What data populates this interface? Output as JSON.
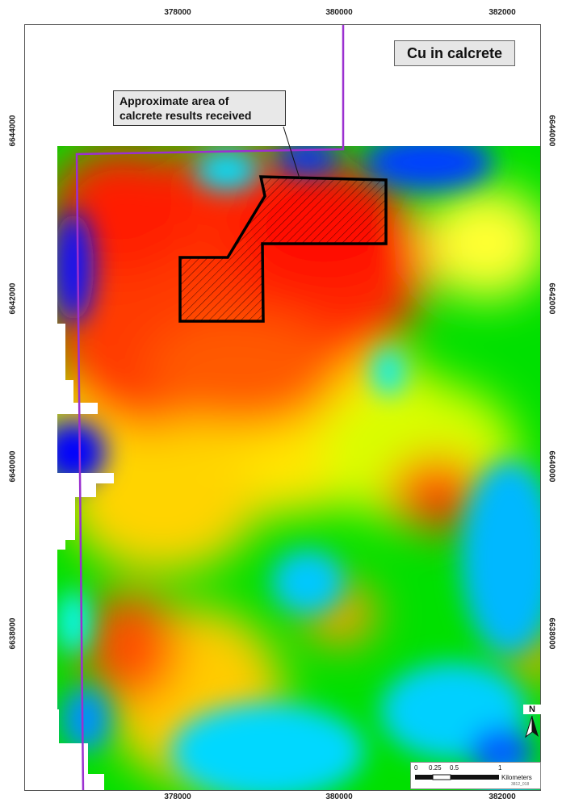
{
  "map": {
    "title": "Cu in calcrete",
    "callout": {
      "line1": "Approximate area of",
      "line2": "calcrete results received"
    },
    "x_ticks_top": [
      "378000",
      "380000",
      "382000"
    ],
    "x_ticks_bottom": [
      "378000",
      "380000",
      "382000"
    ],
    "y_ticks_left": [
      "6644000",
      "6642000",
      "6640000",
      "6638000"
    ],
    "y_ticks_right": [
      "6644000",
      "6642000",
      "6640000",
      "6638000"
    ],
    "north_label": "N",
    "scale": {
      "labels": [
        "0",
        "0.25",
        "0.5",
        "1"
      ],
      "unit": "Kilometers",
      "credit": "3812_018"
    },
    "colors": {
      "high": "#ff1a00",
      "medium_high": "#ff8c00",
      "medium": "#ffff00",
      "medium_low": "#00e800",
      "low": "#00ffff",
      "very_low": "#0000ff",
      "tenement": "#9b30d0",
      "target_polygon": "#000000"
    }
  }
}
